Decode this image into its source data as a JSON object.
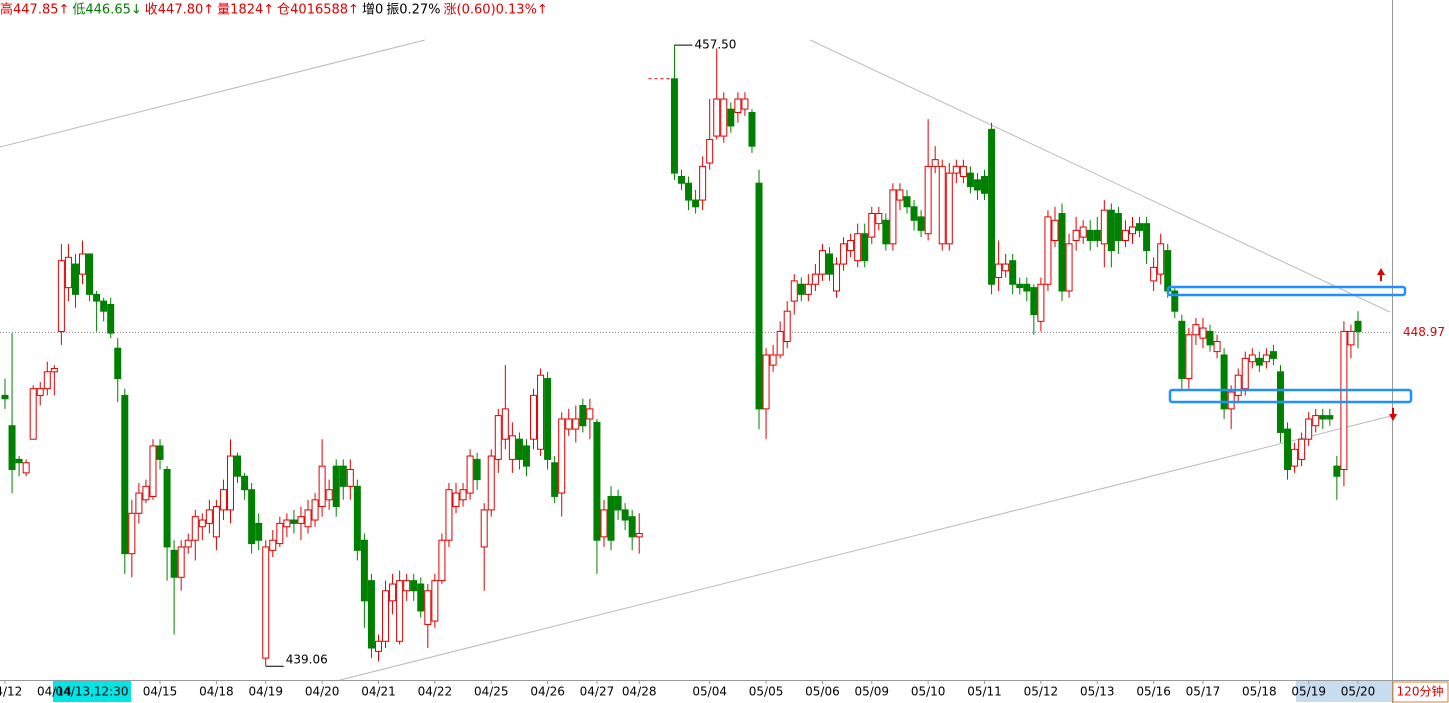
{
  "chart_data": {
    "type": "candlestick",
    "header": [
      {
        "text": "高447.85↑",
        "color": "#e00000"
      },
      {
        "text": "低446.65↓",
        "color": "#008000"
      },
      {
        "text": "收447.80↑",
        "color": "#e00000"
      },
      {
        "text": "量1824↑",
        "color": "#e00000"
      },
      {
        "text": "仓4016588↑",
        "color": "#e00000"
      },
      {
        "text": "增0",
        "color": "#000000"
      },
      {
        "text": "振0.27%",
        "color": "#000000"
      },
      {
        "text": "涨(0.60)0.13%↑",
        "color": "#e00000"
      }
    ],
    "period_label": "120分钟",
    "cursor_label": "04/13,12:30",
    "up_color": "#e00000",
    "down_color": "#008000",
    "ylim": [
      438.65,
      458.84
    ],
    "reference_line": 448.97,
    "high_marker": {
      "value": 457.5,
      "label": "457.50"
    },
    "low_marker": 439.06,
    "categories": [
      "04/12",
      null,
      null,
      null,
      null,
      null,
      null,
      "04/14",
      null,
      null,
      null,
      null,
      null,
      null,
      null,
      null,
      null,
      null,
      null,
      null,
      null,
      null,
      "04/15",
      null,
      null,
      null,
      null,
      null,
      null,
      null,
      "04/18",
      null,
      null,
      null,
      null,
      null,
      null,
      "04/19",
      null,
      null,
      null,
      null,
      null,
      null,
      null,
      "04/20",
      null,
      null,
      null,
      null,
      null,
      null,
      null,
      "04/21",
      null,
      null,
      null,
      null,
      null,
      null,
      null,
      "04/22",
      null,
      null,
      null,
      null,
      null,
      null,
      null,
      "04/25",
      null,
      null,
      null,
      null,
      null,
      null,
      null,
      "04/26",
      null,
      null,
      null,
      null,
      null,
      null,
      "04/27",
      null,
      null,
      null,
      null,
      null,
      "04/28",
      null,
      null,
      null,
      null,
      null,
      null,
      null,
      null,
      null,
      "05/04",
      null,
      null,
      null,
      null,
      null,
      null,
      null,
      "05/05",
      null,
      null,
      null,
      null,
      null,
      null,
      null,
      "05/06",
      null,
      null,
      null,
      null,
      null,
      null,
      "05/09",
      null,
      null,
      null,
      null,
      null,
      null,
      null,
      "05/10",
      null,
      null,
      null,
      null,
      null,
      null,
      null,
      "05/11",
      null,
      null,
      null,
      null,
      null,
      null,
      null,
      "05/12",
      null,
      null,
      null,
      null,
      null,
      null,
      null,
      "05/13",
      null,
      null,
      null,
      null,
      null,
      null,
      null,
      "05/16",
      null,
      null,
      null,
      null,
      null,
      null,
      "05/17",
      null,
      null,
      null,
      null,
      null,
      null,
      null,
      "05/18",
      null,
      null,
      null,
      null,
      null,
      null,
      "05/19",
      null,
      null,
      null,
      null,
      null,
      null,
      "05/20"
    ],
    "candles": [
      [
        447.1,
        447.6,
        446.7,
        447.0
      ],
      [
        446.2,
        448.95,
        444.2,
        444.9
      ],
      [
        445.2,
        445.3,
        444.7,
        445.1
      ],
      [
        444.8,
        445.2,
        444.7,
        445.1
      ],
      [
        445.8,
        447.4,
        445.8,
        447.3
      ],
      [
        447.1,
        447.5,
        446.8,
        447.3
      ],
      [
        447.3,
        448.1,
        447.1,
        447.8
      ],
      [
        447.8,
        448.0,
        447.1,
        447.9
      ],
      [
        449.0,
        451.6,
        448.6,
        451.1
      ],
      [
        450.3,
        451.6,
        449.9,
        451.2
      ],
      [
        451.0,
        451.3,
        449.7,
        450.1
      ],
      [
        450.7,
        451.7,
        450.4,
        451.3
      ],
      [
        451.3,
        451.3,
        449.9,
        450.1
      ],
      [
        450.1,
        450.2,
        449.0,
        449.9
      ],
      [
        449.9,
        450.0,
        449.3,
        449.6
      ],
      [
        449.8,
        450.0,
        448.8,
        448.95
      ],
      [
        448.5,
        448.8,
        446.9,
        447.6
      ],
      [
        447.1,
        447.3,
        441.8,
        442.4
      ],
      [
        442.4,
        444.0,
        441.7,
        443.6
      ],
      [
        443.6,
        444.5,
        443.3,
        444.2
      ],
      [
        444.0,
        444.6,
        443.9,
        444.4
      ],
      [
        444.1,
        445.8,
        444.0,
        445.6
      ],
      [
        445.6,
        445.8,
        444.9,
        445.2
      ],
      [
        444.9,
        445.0,
        441.6,
        442.6
      ],
      [
        442.5,
        442.8,
        440.0,
        441.7
      ],
      [
        441.7,
        442.8,
        441.3,
        442.6
      ],
      [
        442.6,
        443.0,
        442.4,
        442.8
      ],
      [
        442.8,
        443.7,
        442.2,
        443.5
      ],
      [
        443.2,
        443.6,
        442.8,
        443.4
      ],
      [
        443.3,
        444.0,
        443.0,
        443.7
      ],
      [
        442.9,
        444.0,
        442.5,
        443.8
      ],
      [
        443.7,
        444.6,
        443.4,
        444.3
      ],
      [
        443.7,
        445.8,
        443.3,
        445.3
      ],
      [
        445.3,
        445.4,
        444.5,
        444.7
      ],
      [
        444.7,
        444.8,
        444.0,
        444.3
      ],
      [
        444.3,
        444.5,
        442.4,
        442.7
      ],
      [
        443.3,
        443.6,
        442.5,
        442.8
      ],
      [
        439.3,
        442.8,
        439.06,
        442.6
      ],
      [
        442.5,
        443.1,
        442.3,
        442.8
      ],
      [
        442.7,
        443.5,
        442.6,
        443.3
      ],
      [
        443.2,
        443.6,
        442.9,
        443.4
      ],
      [
        443.4,
        443.7,
        443.0,
        443.3
      ],
      [
        443.3,
        443.8,
        442.8,
        443.5
      ],
      [
        443.2,
        444.0,
        443.0,
        443.7
      ],
      [
        443.4,
        444.2,
        443.2,
        444.0
      ],
      [
        443.8,
        445.8,
        443.5,
        445.0
      ],
      [
        444.0,
        444.6,
        443.7,
        444.3
      ],
      [
        445.0,
        445.2,
        443.5,
        443.8
      ],
      [
        445.0,
        445.2,
        444.0,
        444.4
      ],
      [
        444.4,
        445.2,
        444.0,
        444.9
      ],
      [
        444.4,
        444.6,
        442.2,
        442.5
      ],
      [
        442.8,
        443.0,
        440.2,
        441.0
      ],
      [
        441.6,
        441.8,
        439.3,
        439.6
      ],
      [
        439.5,
        440.0,
        439.2,
        439.8
      ],
      [
        439.8,
        441.6,
        439.6,
        441.3
      ],
      [
        441.0,
        441.8,
        440.6,
        441.5
      ],
      [
        439.8,
        441.9,
        439.7,
        441.6
      ],
      [
        441.3,
        441.8,
        441.0,
        441.6
      ],
      [
        441.6,
        441.8,
        441.0,
        441.3
      ],
      [
        441.5,
        441.7,
        440.5,
        440.7
      ],
      [
        440.3,
        441.5,
        439.6,
        441.3
      ],
      [
        440.4,
        441.8,
        440.2,
        441.6
      ],
      [
        441.6,
        443.0,
        441.5,
        442.8
      ],
      [
        442.8,
        444.5,
        442.6,
        444.3
      ],
      [
        443.8,
        444.5,
        443.6,
        444.2
      ],
      [
        444.0,
        444.5,
        443.8,
        444.3
      ],
      [
        444.2,
        445.5,
        444.0,
        445.3
      ],
      [
        445.2,
        445.4,
        444.3,
        444.6
      ],
      [
        442.6,
        443.9,
        441.3,
        443.7
      ],
      [
        443.7,
        445.5,
        443.5,
        445.3
      ],
      [
        445.2,
        446.7,
        444.8,
        446.5
      ],
      [
        445.8,
        448.0,
        445.5,
        446.7
      ],
      [
        445.2,
        446.3,
        444.8,
        445.9
      ],
      [
        445.8,
        446.0,
        444.9,
        445.2
      ],
      [
        445.6,
        445.8,
        444.7,
        445.0
      ],
      [
        445.8,
        447.3,
        445.5,
        447.1
      ],
      [
        445.5,
        447.9,
        445.3,
        447.7
      ],
      [
        447.6,
        447.8,
        444.9,
        445.2
      ],
      [
        445.1,
        445.3,
        443.9,
        444.1
      ],
      [
        444.2,
        446.6,
        443.5,
        446.4
      ],
      [
        446.1,
        446.7,
        445.9,
        446.4
      ],
      [
        446.1,
        446.8,
        445.7,
        446.4
      ],
      [
        446.8,
        447.0,
        446.0,
        446.2
      ],
      [
        446.4,
        447.0,
        445.8,
        446.7
      ],
      [
        446.3,
        446.4,
        441.8,
        442.8
      ],
      [
        442.9,
        444.0,
        442.6,
        443.7
      ],
      [
        444.1,
        444.4,
        442.5,
        442.8
      ],
      [
        444.1,
        444.3,
        443.4,
        443.7
      ],
      [
        443.7,
        443.9,
        443.1,
        443.4
      ],
      [
        443.5,
        443.7,
        442.5,
        442.9
      ],
      [
        442.9,
        443.6,
        442.4,
        443.0
      ],
      null,
      null,
      null,
      null,
      [
        456.5,
        457.5,
        453.5,
        453.7
      ],
      [
        453.6,
        453.8,
        453.2,
        453.4
      ],
      [
        453.4,
        453.6,
        452.6,
        452.9
      ],
      [
        452.9,
        453.2,
        452.5,
        452.7
      ],
      [
        452.9,
        454.2,
        452.6,
        453.9
      ],
      [
        454.0,
        455.9,
        453.8,
        454.7
      ],
      [
        454.8,
        457.4,
        454.7,
        455.9
      ],
      [
        454.8,
        456.1,
        454.6,
        455.9
      ],
      [
        455.6,
        455.8,
        454.9,
        455.1
      ],
      [
        455.5,
        456.1,
        455.2,
        455.9
      ],
      [
        455.6,
        456.1,
        455.4,
        455.9
      ],
      [
        455.5,
        455.6,
        454.3,
        454.5
      ],
      [
        453.4,
        453.8,
        446.1,
        446.7
      ],
      [
        446.7,
        448.5,
        445.8,
        448.3
      ],
      [
        448.0,
        448.6,
        447.8,
        448.3
      ],
      [
        448.3,
        449.3,
        448.2,
        449.0
      ],
      [
        448.7,
        449.9,
        448.5,
        449.6
      ],
      [
        449.9,
        450.7,
        449.5,
        450.5
      ],
      [
        450.4,
        450.6,
        449.9,
        450.1
      ],
      [
        450.1,
        450.7,
        449.9,
        450.4
      ],
      [
        450.4,
        451.0,
        450.2,
        450.7
      ],
      [
        450.7,
        451.6,
        450.5,
        451.4
      ],
      [
        451.3,
        451.5,
        450.5,
        450.7
      ],
      [
        450.2,
        451.2,
        450.0,
        451.0
      ],
      [
        451.0,
        451.8,
        450.8,
        451.6
      ],
      [
        451.4,
        451.9,
        451.2,
        451.7
      ],
      [
        451.1,
        452.2,
        450.9,
        451.9
      ],
      [
        451.9,
        452.2,
        450.9,
        451.1
      ],
      [
        451.8,
        452.7,
        451.6,
        452.5
      ],
      [
        452.2,
        452.7,
        452.0,
        452.5
      ],
      [
        452.3,
        452.5,
        451.4,
        451.6
      ],
      [
        451.6,
        453.4,
        451.4,
        453.2
      ],
      [
        452.9,
        453.4,
        452.6,
        453.2
      ],
      [
        453.0,
        453.2,
        452.5,
        452.7
      ],
      [
        452.7,
        452.9,
        452.0,
        452.3
      ],
      [
        452.4,
        452.6,
        451.8,
        452.0
      ],
      [
        451.9,
        455.3,
        451.7,
        453.9
      ],
      [
        453.9,
        454.5,
        453.7,
        454.1
      ],
      [
        451.6,
        454.1,
        451.4,
        453.9
      ],
      [
        451.6,
        454.0,
        451.4,
        453.7
      ],
      [
        453.7,
        454.1,
        453.4,
        453.9
      ],
      [
        453.6,
        454.1,
        453.4,
        453.9
      ],
      [
        453.7,
        453.9,
        453.1,
        453.3
      ],
      [
        453.5,
        453.7,
        452.9,
        453.2
      ],
      [
        453.6,
        453.8,
        452.9,
        453.1
      ],
      [
        455.0,
        455.2,
        450.1,
        450.4
      ],
      [
        450.6,
        451.7,
        450.2,
        451.0
      ],
      [
        450.8,
        451.3,
        450.6,
        451.0
      ],
      [
        451.1,
        451.3,
        450.1,
        450.4
      ],
      [
        450.4,
        450.6,
        450.1,
        450.3
      ],
      [
        450.4,
        450.6,
        449.9,
        450.2
      ],
      [
        450.3,
        450.4,
        448.9,
        449.5
      ],
      [
        449.3,
        450.6,
        449.0,
        450.4
      ],
      [
        450.4,
        452.6,
        450.2,
        452.4
      ],
      [
        451.7,
        452.7,
        451.5,
        452.3
      ],
      [
        452.5,
        452.8,
        449.9,
        450.2
      ],
      [
        450.2,
        451.9,
        450.0,
        451.6
      ],
      [
        451.7,
        452.4,
        451.4,
        452.0
      ],
      [
        451.8,
        452.3,
        451.6,
        452.1
      ],
      [
        452.0,
        452.3,
        451.4,
        451.7
      ],
      [
        452.0,
        452.4,
        451.5,
        451.7
      ],
      [
        451.6,
        452.9,
        450.9,
        452.6
      ],
      [
        452.6,
        452.8,
        450.9,
        451.4
      ],
      [
        452.5,
        452.7,
        451.3,
        451.7
      ],
      [
        451.7,
        452.3,
        451.5,
        452.0
      ],
      [
        451.9,
        452.4,
        451.6,
        452.1
      ],
      [
        452.2,
        452.4,
        451.8,
        452.0
      ],
      [
        452.2,
        452.4,
        451.0,
        451.4
      ],
      [
        450.5,
        451.2,
        450.2,
        450.9
      ],
      [
        450.7,
        451.9,
        450.4,
        451.6
      ],
      [
        451.4,
        451.6,
        450.0,
        450.2
      ],
      [
        450.2,
        450.3,
        449.4,
        449.6
      ],
      [
        449.3,
        449.5,
        447.3,
        447.6
      ],
      [
        447.6,
        449.1,
        447.3,
        448.9
      ],
      [
        448.9,
        449.4,
        448.6,
        449.2
      ],
      [
        448.8,
        449.4,
        448.5,
        449.1
      ],
      [
        449.0,
        449.2,
        448.4,
        448.6
      ],
      [
        448.4,
        448.9,
        448.2,
        448.7
      ],
      [
        448.3,
        448.5,
        446.4,
        446.7
      ],
      [
        446.7,
        447.4,
        446.1,
        447.2
      ],
      [
        447.1,
        447.9,
        446.9,
        447.7
      ],
      [
        447.3,
        448.4,
        447.1,
        448.2
      ],
      [
        448.1,
        448.5,
        447.9,
        448.3
      ],
      [
        448.2,
        448.4,
        447.8,
        448.0
      ],
      [
        448.1,
        448.5,
        447.9,
        448.3
      ],
      [
        448.4,
        448.6,
        448.0,
        448.2
      ],
      [
        447.8,
        448.0,
        445.7,
        446.0
      ],
      [
        446.1,
        446.3,
        444.6,
        444.9
      ],
      [
        445.0,
        445.7,
        444.8,
        445.5
      ],
      [
        445.2,
        446.0,
        445.0,
        445.8
      ],
      [
        445.8,
        446.6,
        445.6,
        446.4
      ],
      [
        446.2,
        446.7,
        446.0,
        446.5
      ],
      [
        446.5,
        446.7,
        446.1,
        446.4
      ],
      [
        446.5,
        446.7,
        446.2,
        446.4
      ],
      [
        445.0,
        445.3,
        444.0,
        444.7
      ],
      [
        444.9,
        449.3,
        444.4,
        449.0
      ],
      [
        448.6,
        449.2,
        448.2,
        449.0
      ],
      [
        449.3,
        449.6,
        448.5,
        449.0
      ]
    ]
  }
}
